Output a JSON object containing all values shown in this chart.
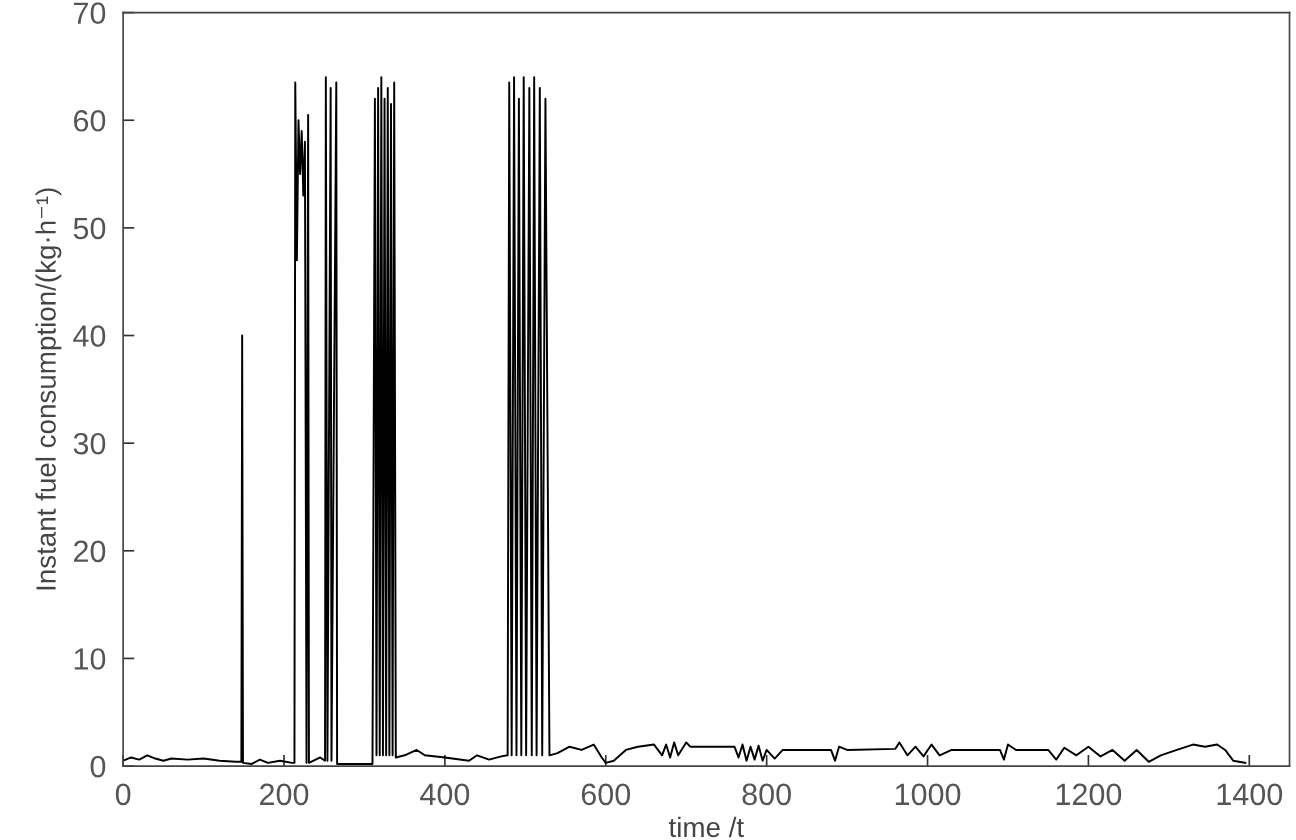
{
  "chart_data": {
    "type": "line",
    "xlabel": "time /t",
    "ylabel": "Instant fuel consumption/(kg·h⁻¹)",
    "xlim": [
      0,
      1450
    ],
    "xticks": [
      0,
      200,
      400,
      600,
      800,
      1000,
      1200,
      1400
    ],
    "ylim": [
      0,
      70
    ],
    "yticks": [
      0,
      10,
      20,
      30,
      40,
      50,
      60,
      70
    ],
    "line_style": "solid",
    "series": [
      {
        "color": "#000000",
        "x": [
          0,
          10,
          20,
          30,
          40,
          50,
          60,
          80,
          100,
          120,
          140,
          147,
          148,
          149,
          160,
          170,
          180,
          195,
          210,
          213,
          214,
          216,
          218,
          220,
          222,
          224,
          226,
          228,
          230,
          231,
          245,
          251,
          252,
          254,
          258,
          259,
          265,
          266,
          310,
          313,
          315,
          317,
          319,
          321,
          323,
          325,
          327,
          329,
          331,
          333,
          335,
          337,
          339,
          350,
          365,
          375,
          400,
          430,
          440,
          455,
          470,
          478,
          480,
          483,
          486,
          489,
          492,
          495,
          498,
          501,
          505,
          508,
          511,
          514,
          518,
          521,
          525,
          530,
          540,
          555,
          570,
          585,
          595,
          600,
          610,
          625,
          640,
          660,
          670,
          675,
          680,
          685,
          690,
          700,
          705,
          760,
          765,
          770,
          775,
          780,
          785,
          790,
          795,
          800,
          810,
          820,
          880,
          885,
          890,
          900,
          960,
          965,
          975,
          985,
          995,
          1005,
          1015,
          1030,
          1090,
          1095,
          1100,
          1110,
          1150,
          1160,
          1170,
          1185,
          1200,
          1215,
          1230,
          1245,
          1260,
          1275,
          1290,
          1310,
          1330,
          1345,
          1360,
          1370,
          1380,
          1395
        ],
        "values": [
          0.5,
          0.8,
          0.6,
          1.0,
          0.7,
          0.5,
          0.7,
          0.6,
          0.7,
          0.5,
          0.4,
          0.4,
          40,
          0.3,
          0.2,
          0.6,
          0.3,
          0.5,
          0.3,
          0.3,
          63.5,
          47,
          60,
          55,
          59,
          53,
          58,
          0.3,
          60.5,
          0.3,
          0.8,
          0.5,
          64,
          0.5,
          63,
          0.5,
          63.5,
          0.2,
          0.2,
          62,
          1,
          63,
          1,
          64,
          1,
          62,
          1,
          63,
          1,
          61.5,
          1,
          63.5,
          0.8,
          1.0,
          1.5,
          1.0,
          0.8,
          0.5,
          1.0,
          0.6,
          0.9,
          1.0,
          63.5,
          1,
          64,
          1,
          62,
          1,
          64,
          1,
          63,
          1,
          64,
          1,
          63,
          1,
          62,
          1,
          1.2,
          1.8,
          1.5,
          2.0,
          0.8,
          0.3,
          0.5,
          1.5,
          1.8,
          2.0,
          1.0,
          2.0,
          0.8,
          2.2,
          1.0,
          2.2,
          1.8,
          1.8,
          0.8,
          2.0,
          0.5,
          1.8,
          0.6,
          1.9,
          0.5,
          1.5,
          0.7,
          1.5,
          1.5,
          0.5,
          1.8,
          1.5,
          1.6,
          2.2,
          1.0,
          1.8,
          0.9,
          2.0,
          1.0,
          1.5,
          1.5,
          0.6,
          2.0,
          1.5,
          1.5,
          0.6,
          1.7,
          1.0,
          1.8,
          0.9,
          1.5,
          0.5,
          1.5,
          0.4,
          1.0,
          1.5,
          2.0,
          1.8,
          2.0,
          1.5,
          0.5,
          0.3
        ]
      }
    ]
  }
}
